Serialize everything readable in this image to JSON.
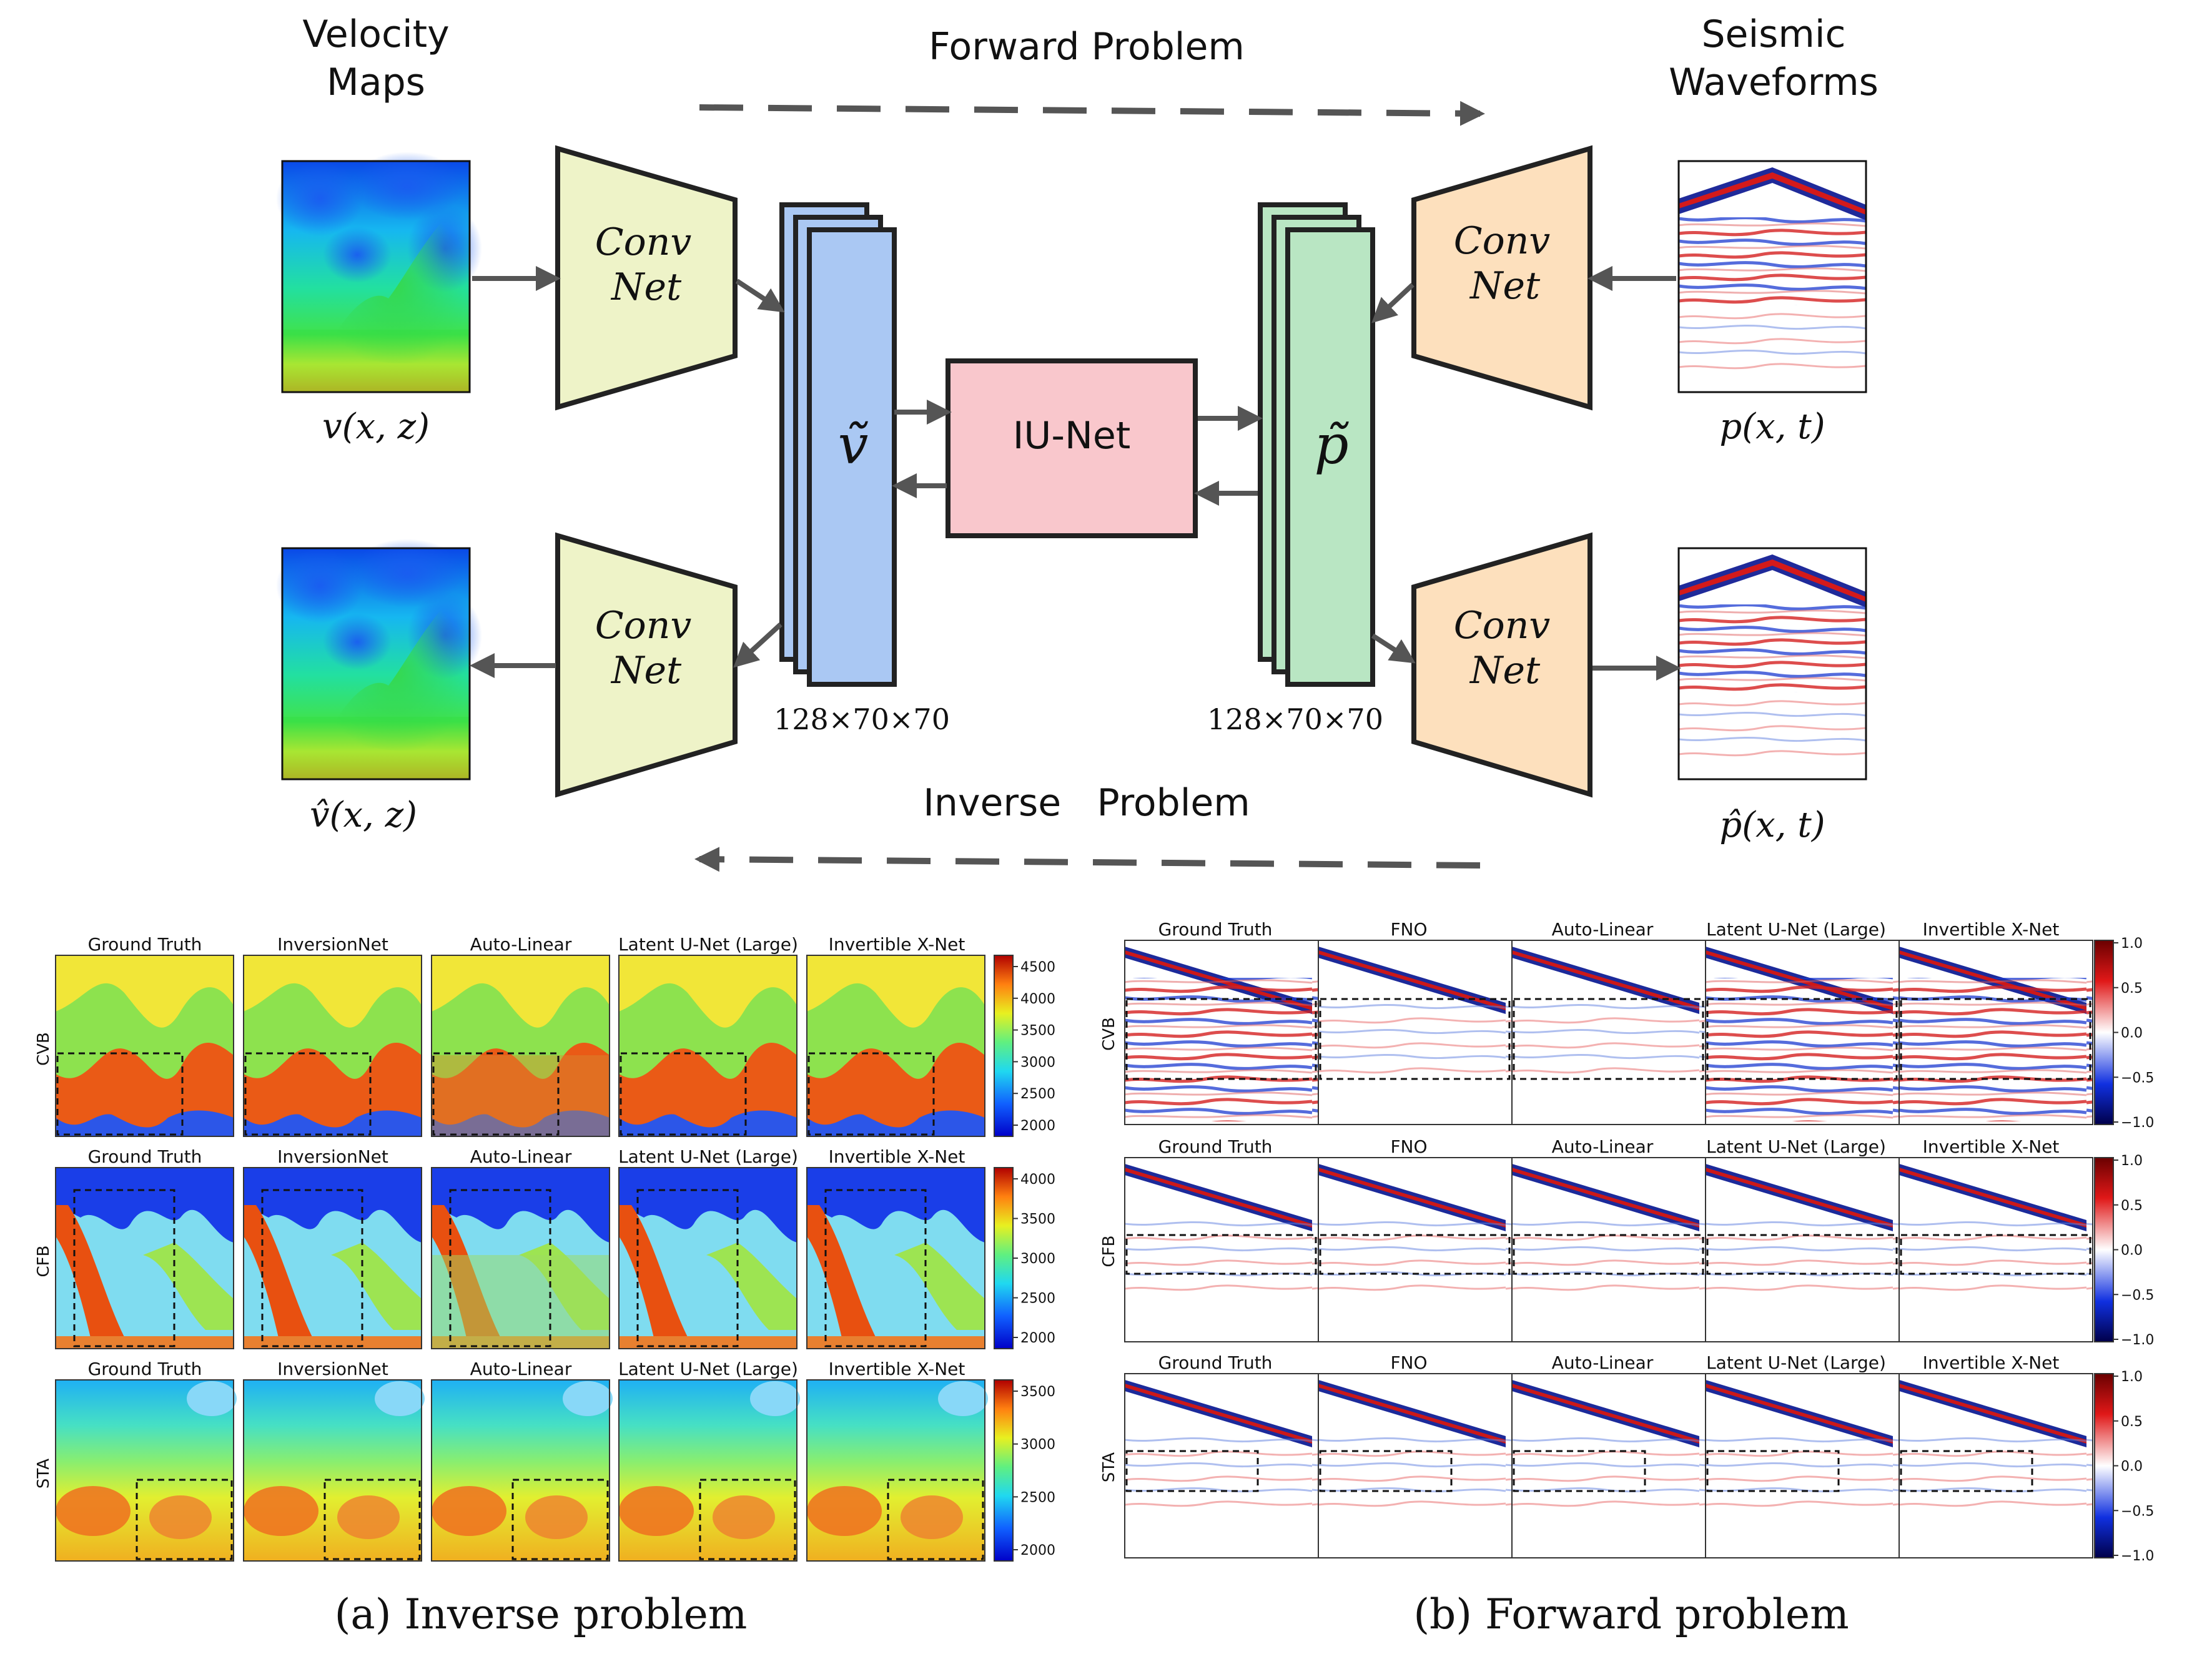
{
  "top": {
    "forward_label": "Forward Problem",
    "inverse_label": "Inverse   Problem",
    "velocity_title_1": "Velocity",
    "velocity_title_2": "Maps",
    "seismic_title_1": "Seismic",
    "seismic_title_2": "Waveforms",
    "encoder_v_1": "Conv",
    "encoder_v_2": "Net",
    "decoder_v_1": "Conv",
    "decoder_v_2": "Net",
    "encoder_p_1": "Conv",
    "encoder_p_2": "Net",
    "decoder_p_1": "Conv",
    "decoder_p_2": "Net",
    "latent_v_symbol": "ṽ",
    "latent_p_symbol": "p̃",
    "latent_v_dims": "128×70×70",
    "latent_p_dims": "128×70×70",
    "iunet_label": "IU-Net",
    "input_v_label": "v(x, z)",
    "output_v_label": "v̂(x, z)",
    "input_p_label": "p(x, t)",
    "output_p_label": "p̂(x, t)"
  },
  "inverse_panel": {
    "caption": "(a) Inverse problem",
    "columns": [
      "Ground Truth",
      "InversionNet",
      "Auto-Linear",
      "Latent U-Net (Large)",
      "Invertible X-Net"
    ],
    "rows": [
      {
        "label": "CVB",
        "ticks": [
          "4500",
          "4000",
          "3500",
          "3000",
          "2500",
          "2000"
        ]
      },
      {
        "label": "CFB",
        "ticks": [
          "4000",
          "3500",
          "3000",
          "2500",
          "2000"
        ]
      },
      {
        "label": "STA",
        "ticks": [
          "3500",
          "3000",
          "2500",
          "2000"
        ]
      }
    ]
  },
  "forward_panel": {
    "caption": "(b) Forward problem",
    "columns": [
      "Ground Truth",
      "FNO",
      "Auto-Linear",
      "Latent U-Net (Large)",
      "Invertible X-Net"
    ],
    "rows": [
      {
        "label": "CVB",
        "ticks": [
          "1.0",
          "0.5",
          "0.0",
          "−0.5",
          "−1.0"
        ]
      },
      {
        "label": "CFB",
        "ticks": [
          "1.0",
          "0.5",
          "0.0",
          "−0.5",
          "−1.0"
        ]
      },
      {
        "label": "STA",
        "ticks": [
          "1.0",
          "0.5",
          "0.0",
          "−0.5",
          "−1.0"
        ]
      }
    ]
  },
  "colors": {
    "encoder_v_fill": "#eef3c8",
    "encoder_p_fill": "#fde0bd",
    "latent_v_fill": "#aac8f3",
    "latent_p_fill": "#b9e6c3",
    "iunet_fill": "#f9c7cc",
    "arrow": "#555555"
  }
}
